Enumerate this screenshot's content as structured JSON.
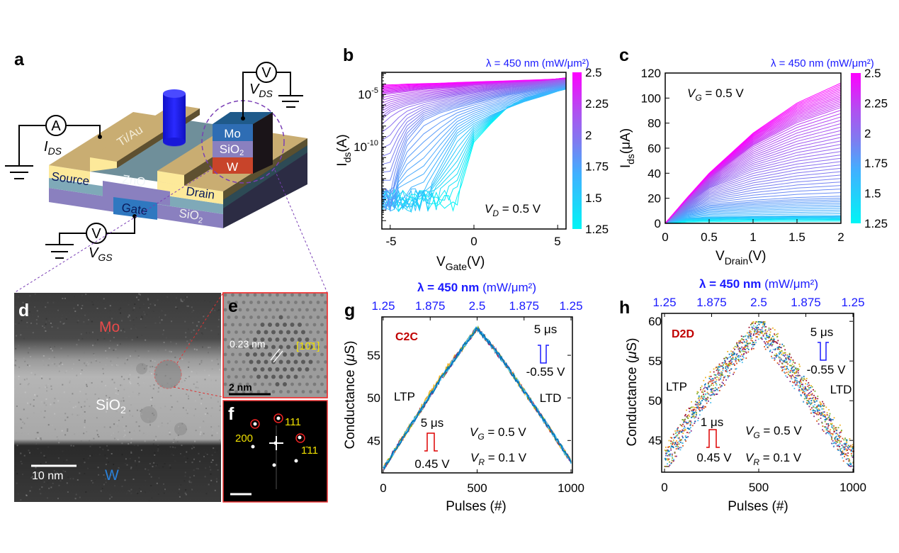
{
  "panel_labels": {
    "a": "a",
    "b": "b",
    "c": "c",
    "d": "d",
    "e": "e",
    "f": "f",
    "g": "g",
    "h": "h"
  },
  "panel_a": {
    "electrode_material": "Ti/Au",
    "source": "Source",
    "drain": "Drain",
    "channel": "ZnO",
    "gate": "Gate",
    "dielectric": {
      "main": "SiO",
      "sub": "2"
    },
    "stack": {
      "top": "Mo",
      "middle": {
        "main": "SiO",
        "sub": "2"
      },
      "bottom": "W"
    },
    "ammeter_symbol": "A",
    "voltmeter_symbol": "V",
    "i_ds": {
      "main": "I",
      "sub": "DS"
    },
    "v_ds": {
      "main": "V",
      "sub": "DS"
    },
    "v_gs": {
      "main": "V",
      "sub": "GS"
    },
    "colors": {
      "electrode": "#c9ad72",
      "contact": "#fde99a",
      "zno": "#7fa9b8",
      "sio2": "#8a80bf",
      "gate": "#2f78c0",
      "mo": "#2e6db4",
      "w": "#c8442a",
      "light_pillar": "#1a1aff",
      "zoom_circle": "#7a3fb5"
    }
  },
  "panel_d": {
    "mo": "Mo",
    "sio2": {
      "main": "SiO",
      "sub": "2"
    },
    "w": "W",
    "scale_bar": "10 nm"
  },
  "panel_e": {
    "spacing": "0.23 nm",
    "direction": "[10̄1]",
    "scale_bar": "2 nm"
  },
  "panel_f": {
    "spot_111": "111",
    "spot_200": "200",
    "spot_1bar11": "1̄11"
  },
  "colorbar": {
    "title": "λ = 450 nm (mW/μm²)",
    "ticks": [
      "1.25",
      "1.5",
      "1.75",
      "2",
      "2.25",
      "2.5"
    ],
    "range": [
      1.25,
      2.5
    ],
    "colors": [
      "#00f5f5",
      "#40b0ff",
      "#7d7df0",
      "#b050f0",
      "#ff00ff"
    ]
  },
  "chart_data": [
    {
      "panel": "b",
      "type": "line",
      "xlabel": {
        "main": "V",
        "sub": "Gate",
        "unit": "(V)"
      },
      "ylabel": {
        "main": "I",
        "sub": "ds",
        "unit": "(A)"
      },
      "xlim": [
        -5.5,
        5.5
      ],
      "ylim": [
        1.6e-18,
        0.0013
      ],
      "yscale": "log",
      "xticks": [
        "-5",
        "0",
        "5"
      ],
      "yticks": [
        {
          "base": "10",
          "exp": "-5"
        },
        {
          "base": "10",
          "exp": "-10"
        }
      ],
      "annotation": {
        "main": "V",
        "sub": "D",
        "rest": " = 0.5 V"
      },
      "color_by": "light intensity (mW/μm²)",
      "x": [
        -5.5,
        -5,
        -4.5,
        -4,
        -3,
        -2,
        -1,
        0,
        1,
        2,
        3,
        4,
        5,
        5.5
      ],
      "series": [
        {
          "intensity": 1.25,
          "values": [
            6e-16,
            2.5e-16,
            1e-15,
            4e-16,
            8e-16,
            5e-16,
            1e-15,
            3e-10,
            1.6e-08,
            6e-07,
            4e-06,
            1.3e-05,
            3.2e-05,
            5e-05
          ]
        },
        {
          "intensity": 1.5,
          "values": [
            8e-16,
            3e-16,
            1.6e-15,
            5e-16,
            1e-15,
            1e-12,
            1e-09,
            1.6e-08,
            1e-07,
            5e-07,
            2e-06,
            6e-06,
            2e-05,
            3.2e-05
          ]
        },
        {
          "intensity": 1.75,
          "values": [
            1e-15,
            6e-16,
            1e-12,
            3e-10,
            3e-08,
            1.6e-07,
            5e-07,
            1.3e-06,
            3.2e-06,
            8e-06,
            1.6e-05,
            3.2e-05,
            6e-05,
            8e-05
          ]
        },
        {
          "intensity": 2.0,
          "values": [
            3e-08,
            1.6e-07,
            4e-07,
            8e-07,
            2e-06,
            4e-06,
            8e-06,
            1.3e-05,
            2.5e-05,
            4e-05,
            6e-05,
            0.0001,
            0.00016,
            0.0002
          ]
        },
        {
          "intensity": 2.25,
          "values": [
            1e-05,
            1.3e-05,
            1.6e-05,
            2e-05,
            3.2e-05,
            4e-05,
            5e-05,
            8e-05,
            0.0001,
            0.00013,
            0.00016,
            0.0002,
            0.00032,
            0.0004
          ]
        },
        {
          "intensity": 2.5,
          "values": [
            8e-05,
            8.5e-05,
            9e-05,
            0.0001,
            0.00011,
            0.00012,
            0.00014,
            0.00016,
            0.00018,
            0.0002,
            0.00023,
            0.00026,
            0.0003,
            0.00032
          ]
        }
      ]
    },
    {
      "panel": "c",
      "type": "line",
      "xlabel": {
        "main": "V",
        "sub": "Drain",
        "unit": "(V)"
      },
      "ylabel": {
        "main": "I",
        "sub": "ds",
        "unit": "(μA)"
      },
      "xlim": [
        0,
        2
      ],
      "ylim": [
        0,
        120
      ],
      "xticks": [
        "0",
        "0.5",
        "1",
        "1.5",
        "2"
      ],
      "yticks": [
        "0",
        "20",
        "40",
        "60",
        "80",
        "100",
        "120"
      ],
      "annotation": {
        "main": "V",
        "sub": "G",
        "rest": " = 0.5 V"
      },
      "color_by": "light intensity (mW/μm²)",
      "x": [
        0,
        0.25,
        0.5,
        1,
        1.5,
        2
      ],
      "series": [
        {
          "intensity": 1.25,
          "values": [
            0,
            1,
            1.3,
            1.5,
            1.6,
            1.7
          ]
        },
        {
          "intensity": 1.5,
          "values": [
            0,
            4,
            5,
            5.5,
            5.8,
            6
          ]
        },
        {
          "intensity": 1.75,
          "values": [
            0,
            10,
            15,
            18,
            20,
            21
          ]
        },
        {
          "intensity": 2.0,
          "values": [
            0,
            16,
            28,
            42,
            50,
            55
          ]
        },
        {
          "intensity": 2.25,
          "values": [
            0,
            19,
            36,
            62,
            80,
            92
          ]
        },
        {
          "intensity": 2.5,
          "values": [
            0,
            20.5,
            40,
            72,
            96,
            112
          ]
        }
      ]
    },
    {
      "panel": "g",
      "type": "line",
      "title": {
        "bold": "λ = 450 nm",
        "rest": " (mW/μm²)"
      },
      "xlabel": "Pulses (#)",
      "ylabel": {
        "main": "Conductance (",
        "mu": "μ",
        "rest": "S)"
      },
      "xlim": [
        0,
        1000
      ],
      "ylim": [
        41.2,
        59.5
      ],
      "xticks": [
        "0",
        "500",
        "1000"
      ],
      "yticks": [
        "45",
        "50",
        "55"
      ],
      "top_ticks": [
        "1.25",
        "1.875",
        "2.5",
        "1.875",
        "1.25"
      ],
      "x": [
        0,
        100,
        200,
        300,
        400,
        500,
        600,
        700,
        800,
        900,
        1000
      ],
      "values": [
        41.7,
        45.2,
        48.6,
        52.0,
        55.2,
        58.2,
        55.5,
        52.4,
        49.2,
        45.9,
        42.5
      ],
      "series_colors": [
        "#a2142f",
        "#d95319",
        "#edb120",
        "#7e2f8e",
        "#77ac30",
        "#4dbeee",
        "#0072bd"
      ],
      "labels": {
        "tag": "C2C",
        "ltp": "LTP",
        "ltd": "LTD",
        "pot_width": "5 μs",
        "pot_amp": "0.45 V",
        "dep_width": "5 μs",
        "dep_amp": "-0.55 V",
        "vg": {
          "main": "V",
          "sub": "G",
          "rest": " = 0.5 V"
        },
        "vr": {
          "main": "V",
          "sub": "R",
          "rest": " = 0.1 V"
        }
      }
    },
    {
      "panel": "h",
      "type": "scatter",
      "title": {
        "bold": "λ = 450 nm",
        "rest": " (mW/μm²)"
      },
      "xlabel": "Pulses (#)",
      "ylabel": {
        "main": "Conductance (",
        "mu": "μ",
        "rest": "S)"
      },
      "xlim": [
        0,
        1000
      ],
      "ylim": [
        41,
        61
      ],
      "xticks": [
        "0",
        "500",
        "1000"
      ],
      "yticks": [
        "45",
        "50",
        "55",
        "60"
      ],
      "top_ticks": [
        "1.25",
        "1.875",
        "2.5",
        "1.875",
        "1.25"
      ],
      "x": [
        0,
        100,
        200,
        300,
        400,
        500,
        600,
        700,
        800,
        900,
        1000
      ],
      "values": [
        42.5,
        46.5,
        50.5,
        53.5,
        56.5,
        59.3,
        56.5,
        53.0,
        49.5,
        46.0,
        42.5
      ],
      "spread": 1.5,
      "series_colors": [
        "#a2142f",
        "#d95319",
        "#edb120",
        "#7e2f8e",
        "#77ac30",
        "#4dbeee",
        "#0072bd"
      ],
      "labels": {
        "tag": "D2D",
        "ltp": "LTP",
        "ltd": "LTD",
        "pot_width": "1 μs",
        "pot_amp": "0.45 V",
        "dep_width": "5 μs",
        "dep_amp": "-0.55 V",
        "vg": {
          "main": "V",
          "sub": "G",
          "rest": " = 0.5 V"
        },
        "vr": {
          "main": "V",
          "sub": "R",
          "rest": " = 0.1 V"
        }
      }
    }
  ]
}
